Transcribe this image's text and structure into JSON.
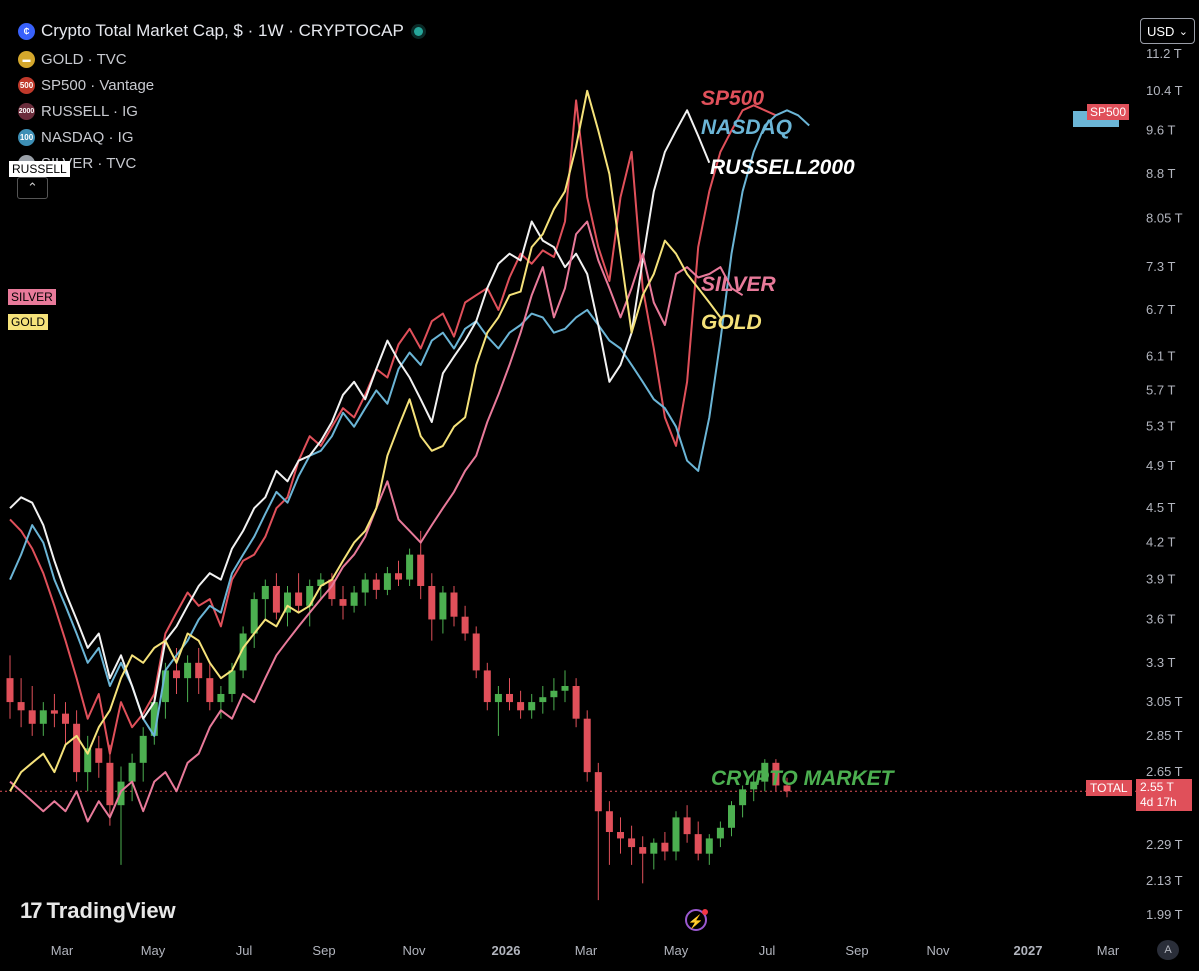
{
  "header": {
    "title": "Crypto Total Market Cap, $ · 1W · CRYPTOCAP",
    "legend": [
      {
        "label": "GOLD · TVC",
        "icon_text": "",
        "color": "#d4a72c"
      },
      {
        "label": "SP500 · Vantage",
        "icon_text": "500",
        "color": "#c0392b"
      },
      {
        "label": "RUSSELL · IG",
        "icon_text": "2000",
        "color": "#6b2d3c"
      },
      {
        "label": "NASDAQ · IG",
        "icon_text": "100",
        "color": "#3d8fb5"
      },
      {
        "label": "SILVER · TVC",
        "icon_text": "",
        "color": "#9aa0a8"
      }
    ],
    "currency": "USD"
  },
  "price_axis": {
    "labels": [
      "11.2 T",
      "10.4 T",
      "9.6 T",
      "8.8 T",
      "8.05 T",
      "7.3 T",
      "6.7 T",
      "6.1 T",
      "5.7 T",
      "5.3 T",
      "4.9 T",
      "4.5 T",
      "4.2 T",
      "3.9 T",
      "3.6 T",
      "3.3 T",
      "3.05 T",
      "2.85 T",
      "2.65 T",
      "2.29 T",
      "2.13 T",
      "1.99 T"
    ],
    "values": [
      11.2,
      10.4,
      9.6,
      8.8,
      8.05,
      7.3,
      6.7,
      6.1,
      5.7,
      5.3,
      4.9,
      4.5,
      4.2,
      3.9,
      3.6,
      3.3,
      3.05,
      2.85,
      2.65,
      2.29,
      2.13,
      1.99
    ]
  },
  "time_axis": {
    "labels": [
      "Mar",
      "May",
      "Jul",
      "Sep",
      "Nov",
      "2026",
      "Mar",
      "May",
      "Jul",
      "Sep",
      "Nov",
      "2027",
      "Mar"
    ],
    "bold": [
      false,
      false,
      false,
      false,
      false,
      true,
      false,
      false,
      false,
      false,
      false,
      true,
      false
    ]
  },
  "tags": {
    "russell_left": "RUSSELL",
    "silver_left": "SILVER",
    "gold_left": "GOLD",
    "sp500_right": "SP500",
    "total_left": "TOTAL",
    "total_price": "2.55 T",
    "total_countdown": "4d 17h"
  },
  "annotations": {
    "sp500": "SP500",
    "nasdaq": "NASDAQ",
    "russell": "RUSSELL2000",
    "silver": "SILVER",
    "gold": "GOLD",
    "crypto": "CRYPTO MARKET"
  },
  "branding": {
    "name": "TradingView"
  },
  "chart_data": {
    "type": "line",
    "title": "Crypto Total Market Cap, $ · 1W · CRYPTOCAP",
    "y_scale": "log",
    "ylim": [
      1.95,
      11.4
    ],
    "x_unit": "weeks",
    "x_start": "2024-03",
    "x_end": "2027-03",
    "current_value": 2.55,
    "candles": [
      {
        "o": 3.2,
        "h": 3.35,
        "l": 2.95,
        "c": 3.05
      },
      {
        "o": 3.05,
        "h": 3.2,
        "l": 2.9,
        "c": 3.0
      },
      {
        "o": 3.0,
        "h": 3.15,
        "l": 2.85,
        "c": 2.92
      },
      {
        "o": 2.92,
        "h": 3.05,
        "l": 2.85,
        "c": 3.0
      },
      {
        "o": 3.0,
        "h": 3.1,
        "l": 2.9,
        "c": 2.98
      },
      {
        "o": 2.98,
        "h": 3.05,
        "l": 2.8,
        "c": 2.92
      },
      {
        "o": 2.92,
        "h": 3.0,
        "l": 2.6,
        "c": 2.65
      },
      {
        "o": 2.65,
        "h": 2.85,
        "l": 2.55,
        "c": 2.78
      },
      {
        "o": 2.78,
        "h": 2.85,
        "l": 2.62,
        "c": 2.7
      },
      {
        "o": 2.7,
        "h": 2.8,
        "l": 2.38,
        "c": 2.48
      },
      {
        "o": 2.48,
        "h": 2.68,
        "l": 2.2,
        "c": 2.6
      },
      {
        "o": 2.6,
        "h": 2.75,
        "l": 2.5,
        "c": 2.7
      },
      {
        "o": 2.7,
        "h": 2.9,
        "l": 2.6,
        "c": 2.85
      },
      {
        "o": 2.85,
        "h": 3.1,
        "l": 2.8,
        "c": 3.05
      },
      {
        "o": 3.05,
        "h": 3.3,
        "l": 2.95,
        "c": 3.25
      },
      {
        "o": 3.25,
        "h": 3.4,
        "l": 3.1,
        "c": 3.2
      },
      {
        "o": 3.2,
        "h": 3.35,
        "l": 3.05,
        "c": 3.3
      },
      {
        "o": 3.3,
        "h": 3.4,
        "l": 3.1,
        "c": 3.2
      },
      {
        "o": 3.2,
        "h": 3.3,
        "l": 3.0,
        "c": 3.05
      },
      {
        "o": 3.05,
        "h": 3.15,
        "l": 2.95,
        "c": 3.1
      },
      {
        "o": 3.1,
        "h": 3.3,
        "l": 3.05,
        "c": 3.25
      },
      {
        "o": 3.25,
        "h": 3.55,
        "l": 3.2,
        "c": 3.5
      },
      {
        "o": 3.5,
        "h": 3.8,
        "l": 3.4,
        "c": 3.75
      },
      {
        "o": 3.75,
        "h": 3.9,
        "l": 3.6,
        "c": 3.85
      },
      {
        "o": 3.85,
        "h": 3.95,
        "l": 3.6,
        "c": 3.65
      },
      {
        "o": 3.65,
        "h": 3.85,
        "l": 3.55,
        "c": 3.8
      },
      {
        "o": 3.8,
        "h": 3.95,
        "l": 3.65,
        "c": 3.7
      },
      {
        "o": 3.7,
        "h": 3.9,
        "l": 3.55,
        "c": 3.85
      },
      {
        "o": 3.85,
        "h": 3.95,
        "l": 3.75,
        "c": 3.9
      },
      {
        "o": 3.9,
        "h": 3.95,
        "l": 3.7,
        "c": 3.75
      },
      {
        "o": 3.75,
        "h": 3.85,
        "l": 3.6,
        "c": 3.7
      },
      {
        "o": 3.7,
        "h": 3.85,
        "l": 3.65,
        "c": 3.8
      },
      {
        "o": 3.8,
        "h": 3.95,
        "l": 3.7,
        "c": 3.9
      },
      {
        "o": 3.9,
        "h": 3.95,
        "l": 3.75,
        "c": 3.82
      },
      {
        "o": 3.82,
        "h": 4.0,
        "l": 3.78,
        "c": 3.95
      },
      {
        "o": 3.95,
        "h": 4.05,
        "l": 3.85,
        "c": 3.9
      },
      {
        "o": 3.9,
        "h": 4.15,
        "l": 3.85,
        "c": 4.1
      },
      {
        "o": 4.1,
        "h": 4.3,
        "l": 3.75,
        "c": 3.85
      },
      {
        "o": 3.85,
        "h": 3.95,
        "l": 3.45,
        "c": 3.6
      },
      {
        "o": 3.6,
        "h": 3.85,
        "l": 3.5,
        "c": 3.8
      },
      {
        "o": 3.8,
        "h": 3.85,
        "l": 3.55,
        "c": 3.62
      },
      {
        "o": 3.62,
        "h": 3.7,
        "l": 3.45,
        "c": 3.5
      },
      {
        "o": 3.5,
        "h": 3.55,
        "l": 3.2,
        "c": 3.25
      },
      {
        "o": 3.25,
        "h": 3.3,
        "l": 3.0,
        "c": 3.05
      },
      {
        "o": 3.05,
        "h": 3.15,
        "l": 2.85,
        "c": 3.1
      },
      {
        "o": 3.1,
        "h": 3.2,
        "l": 3.0,
        "c": 3.05
      },
      {
        "o": 3.05,
        "h": 3.12,
        "l": 2.95,
        "c": 3.0
      },
      {
        "o": 3.0,
        "h": 3.1,
        "l": 2.95,
        "c": 3.05
      },
      {
        "o": 3.05,
        "h": 3.15,
        "l": 2.98,
        "c": 3.08
      },
      {
        "o": 3.08,
        "h": 3.2,
        "l": 3.0,
        "c": 3.12
      },
      {
        "o": 3.12,
        "h": 3.25,
        "l": 3.05,
        "c": 3.15
      },
      {
        "o": 3.15,
        "h": 3.2,
        "l": 2.9,
        "c": 2.95
      },
      {
        "o": 2.95,
        "h": 3.0,
        "l": 2.6,
        "c": 2.65
      },
      {
        "o": 2.65,
        "h": 2.7,
        "l": 2.05,
        "c": 2.45
      },
      {
        "o": 2.45,
        "h": 2.5,
        "l": 2.2,
        "c": 2.35
      },
      {
        "o": 2.35,
        "h": 2.42,
        "l": 2.25,
        "c": 2.32
      },
      {
        "o": 2.32,
        "h": 2.38,
        "l": 2.2,
        "c": 2.28
      },
      {
        "o": 2.28,
        "h": 2.33,
        "l": 2.12,
        "c": 2.25
      },
      {
        "o": 2.25,
        "h": 2.32,
        "l": 2.18,
        "c": 2.3
      },
      {
        "o": 2.3,
        "h": 2.35,
        "l": 2.22,
        "c": 2.26
      },
      {
        "o": 2.26,
        "h": 2.45,
        "l": 2.22,
        "c": 2.42
      },
      {
        "o": 2.42,
        "h": 2.48,
        "l": 2.3,
        "c": 2.34
      },
      {
        "o": 2.34,
        "h": 2.4,
        "l": 2.22,
        "c": 2.25
      },
      {
        "o": 2.25,
        "h": 2.34,
        "l": 2.2,
        "c": 2.32
      },
      {
        "o": 2.32,
        "h": 2.4,
        "l": 2.28,
        "c": 2.37
      },
      {
        "o": 2.37,
        "h": 2.5,
        "l": 2.33,
        "c": 2.48
      },
      {
        "o": 2.48,
        "h": 2.58,
        "l": 2.42,
        "c": 2.56
      },
      {
        "o": 2.56,
        "h": 2.65,
        "l": 2.5,
        "c": 2.6
      },
      {
        "o": 2.6,
        "h": 2.72,
        "l": 2.55,
        "c": 2.7
      },
      {
        "o": 2.7,
        "h": 2.72,
        "l": 2.55,
        "c": 2.58
      },
      {
        "o": 2.58,
        "h": 2.62,
        "l": 2.52,
        "c": 2.55
      }
    ],
    "series": [
      {
        "name": "SP500",
        "color": "#e0505a",
        "values": [
          4.4,
          4.3,
          4.15,
          3.95,
          3.7,
          3.45,
          3.2,
          2.95,
          3.1,
          2.75,
          3.05,
          2.9,
          2.98,
          3.1,
          3.5,
          3.65,
          3.8,
          3.7,
          3.75,
          3.55,
          3.9,
          4.05,
          4.1,
          4.25,
          4.5,
          4.6,
          4.95,
          5.2,
          5.1,
          5.3,
          5.5,
          5.4,
          5.65,
          5.95,
          5.85,
          6.25,
          6.45,
          6.2,
          6.55,
          6.65,
          6.35,
          6.8,
          6.9,
          7.0,
          6.7,
          7.15,
          7.5,
          7.35,
          7.55,
          7.45,
          8.0,
          10.2,
          8.4,
          7.6,
          7.1,
          8.4,
          9.2,
          7.0,
          6.2,
          5.4,
          5.1,
          5.8,
          7.6,
          8.5,
          9.2,
          9.6,
          10.0,
          10.1,
          10.0,
          9.9
        ]
      },
      {
        "name": "NASDAQ",
        "color": "#6bb5d6",
        "values": [
          3.9,
          4.1,
          4.35,
          4.2,
          3.9,
          3.7,
          3.5,
          3.3,
          3.4,
          3.15,
          3.3,
          3.15,
          2.95,
          2.85,
          3.25,
          3.35,
          3.45,
          3.6,
          3.7,
          3.65,
          3.95,
          4.1,
          4.25,
          4.45,
          4.65,
          4.55,
          4.8,
          5.0,
          5.05,
          5.2,
          5.45,
          5.3,
          5.5,
          5.7,
          5.55,
          5.95,
          6.15,
          6.0,
          6.3,
          6.4,
          6.2,
          6.45,
          6.55,
          6.35,
          6.2,
          6.4,
          6.5,
          6.65,
          6.6,
          6.4,
          6.45,
          6.6,
          6.7,
          6.5,
          6.3,
          6.2,
          6.0,
          5.8,
          5.6,
          5.5,
          5.3,
          4.95,
          4.85,
          5.4,
          6.3,
          7.5,
          8.5,
          9.2,
          9.7,
          9.9,
          10.0,
          9.9,
          9.7
        ]
      },
      {
        "name": "RUSSELL2000",
        "color": "#f2f2f2",
        "values": [
          4.5,
          4.6,
          4.55,
          4.35,
          4.05,
          3.8,
          3.6,
          3.4,
          3.5,
          3.2,
          3.35,
          3.15,
          2.95,
          3.05,
          3.45,
          3.55,
          3.7,
          3.85,
          3.95,
          3.9,
          4.15,
          4.3,
          4.5,
          4.6,
          4.85,
          4.75,
          4.95,
          5.0,
          5.15,
          5.35,
          5.65,
          5.8,
          5.6,
          5.95,
          6.3,
          6.05,
          5.85,
          5.6,
          5.35,
          5.9,
          6.1,
          6.3,
          6.55,
          7.0,
          7.35,
          7.5,
          7.4,
          8.0,
          7.7,
          7.6,
          7.3,
          7.5,
          7.2,
          6.5,
          5.8,
          6.0,
          6.4,
          7.4,
          8.5,
          9.2,
          9.6,
          10.0,
          9.5,
          9.0
        ]
      },
      {
        "name": "SILVER",
        "color": "#e87a9a",
        "values": [
          2.6,
          2.55,
          2.5,
          2.45,
          2.5,
          2.45,
          2.55,
          2.4,
          2.5,
          2.42,
          2.55,
          2.6,
          2.45,
          2.6,
          2.65,
          2.55,
          2.7,
          2.75,
          2.9,
          3.0,
          2.95,
          3.1,
          3.05,
          3.2,
          3.35,
          3.45,
          3.55,
          3.65,
          3.75,
          3.85,
          4.0,
          4.1,
          4.25,
          4.5,
          4.75,
          4.4,
          4.3,
          4.2,
          4.35,
          4.5,
          4.65,
          4.85,
          5.0,
          5.35,
          5.65,
          6.0,
          6.4,
          6.9,
          7.3,
          6.6,
          7.0,
          7.8,
          8.0,
          7.4,
          7.0,
          6.6,
          7.0,
          7.5,
          6.8,
          6.5,
          7.2,
          7.3,
          7.15,
          7.2,
          7.3,
          7.0,
          6.9
        ]
      },
      {
        "name": "GOLD",
        "color": "#f5e27a",
        "values": [
          2.55,
          2.65,
          2.7,
          2.75,
          2.65,
          2.8,
          2.85,
          2.75,
          2.9,
          3.0,
          3.2,
          3.35,
          3.3,
          3.4,
          3.45,
          3.3,
          3.5,
          3.45,
          3.3,
          3.2,
          3.25,
          3.4,
          3.5,
          3.6,
          3.55,
          3.7,
          3.65,
          3.7,
          3.85,
          3.9,
          4.05,
          4.2,
          4.3,
          4.5,
          5.0,
          5.3,
          5.6,
          5.2,
          5.05,
          5.1,
          5.3,
          5.4,
          6.0,
          6.4,
          6.6,
          6.9,
          6.95,
          7.6,
          7.8,
          8.2,
          8.5,
          9.3,
          10.4,
          9.6,
          8.8,
          7.5,
          6.4,
          6.9,
          7.2,
          7.7,
          7.5,
          7.2,
          7.0,
          6.8,
          6.6
        ]
      }
    ]
  }
}
